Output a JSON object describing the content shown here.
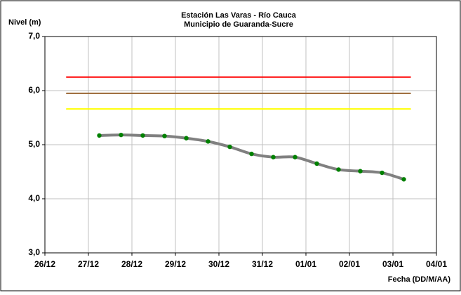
{
  "chart_data": {
    "type": "line",
    "title": [
      "Estación Las Varas - Río Cauca",
      "Municipio de Guaranda-Sucre"
    ],
    "y_label": "Nivel (m)",
    "x_label": "Fecha (DD/M/AA)",
    "xlim": [
      0,
      9
    ],
    "xticks": [
      {
        "value": 0,
        "label": "26/12"
      },
      {
        "value": 1,
        "label": "27/12"
      },
      {
        "value": 2,
        "label": "28/12"
      },
      {
        "value": 3,
        "label": "29/12"
      },
      {
        "value": 4,
        "label": "30/12"
      },
      {
        "value": 5,
        "label": "31/12"
      },
      {
        "value": 6,
        "label": "01/01"
      },
      {
        "value": 7,
        "label": "02/01"
      },
      {
        "value": 8,
        "label": "03/01"
      },
      {
        "value": 9,
        "label": "04/01"
      }
    ],
    "ylim": [
      3,
      7
    ],
    "yticks": [
      {
        "value": 3,
        "label": "3,0"
      },
      {
        "value": 4,
        "label": "4,0"
      },
      {
        "value": 5,
        "label": "5,0"
      },
      {
        "value": 6,
        "label": "6,0"
      },
      {
        "value": 7,
        "label": "7,0"
      }
    ],
    "grid": true,
    "series": [
      {
        "color": "#ff0000",
        "x": [
          0.5,
          8.4
        ],
        "values": [
          6.25,
          6.25
        ]
      },
      {
        "color": "#996633",
        "x": [
          0.5,
          8.4
        ],
        "values": [
          5.95,
          5.95
        ]
      },
      {
        "color": "#ffff00",
        "x": [
          0.5,
          8.4
        ],
        "values": [
          5.66,
          5.66
        ]
      },
      {
        "color": "#808080",
        "marker_color": "#008000",
        "x": [
          1.25,
          1.75,
          2.25,
          2.75,
          3.25,
          3.75,
          4.25,
          4.75,
          5.25,
          5.75,
          6.25,
          6.75,
          7.25,
          7.75,
          8.25
        ],
        "values": [
          5.17,
          5.18,
          5.17,
          5.16,
          5.12,
          5.06,
          4.96,
          4.83,
          4.77,
          4.77,
          4.65,
          4.54,
          4.51,
          4.48,
          4.36
        ]
      }
    ]
  }
}
